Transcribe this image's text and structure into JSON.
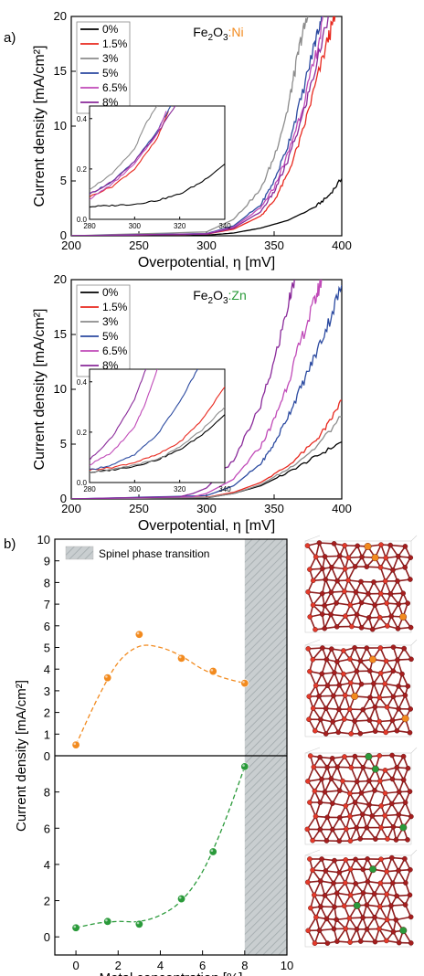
{
  "panel_labels": {
    "a": "a)",
    "b": "b)"
  },
  "chart_data": [
    {
      "id": "ni",
      "type": "line",
      "title_main": "Fe",
      "title_sub": "2",
      "title_mid": "O",
      "title_sub2": "3",
      "title_dopant": ":Ni",
      "dopant_color": "#f28a1e",
      "xlabel": "Overpotential, η [mV]",
      "ylabel": "Current density [mA/cm²]",
      "xlim": [
        200,
        400
      ],
      "ylim": [
        0,
        20
      ],
      "xticks": [
        "200",
        "250",
        "300",
        "350",
        "400"
      ],
      "yticks": [
        "0",
        "5",
        "10",
        "15",
        "20"
      ],
      "legend": "top-left",
      "series": [
        {
          "name": "0%",
          "color": "#000000",
          "x": [
            200,
            280,
            300,
            320,
            340,
            360,
            380,
            390,
            400
          ],
          "y": [
            0,
            0,
            0.05,
            0.25,
            0.7,
            1.4,
            2.6,
            3.6,
            5.2
          ]
        },
        {
          "name": "1.5%",
          "color": "#e8281e",
          "x": [
            200,
            300,
            320,
            340,
            350,
            360,
            370,
            380,
            390,
            395
          ],
          "y": [
            0,
            0.15,
            0.6,
            1.8,
            3.2,
            5.6,
            9.0,
            13.5,
            18.0,
            20
          ]
        },
        {
          "name": "3%",
          "color": "#8c8c8c",
          "x": [
            200,
            300,
            320,
            340,
            350,
            360,
            365,
            370,
            375
          ],
          "y": [
            0,
            0.35,
            1.5,
            4.2,
            7.2,
            11.5,
            14.8,
            18.0,
            20
          ]
        },
        {
          "name": "5%",
          "color": "#2b4aa0",
          "x": [
            200,
            300,
            320,
            340,
            350,
            360,
            370,
            380,
            385
          ],
          "y": [
            0,
            0.2,
            0.9,
            2.8,
            5.0,
            8.2,
            12.5,
            17.5,
            20
          ]
        },
        {
          "name": "6.5%",
          "color": "#c04ab8",
          "x": [
            200,
            300,
            320,
            340,
            350,
            360,
            370,
            380,
            387
          ],
          "y": [
            0,
            0.18,
            0.8,
            2.5,
            4.4,
            7.4,
            11.3,
            16.0,
            20
          ]
        },
        {
          "name": "8%",
          "color": "#8a2a9a",
          "x": [
            200,
            300,
            320,
            340,
            350,
            360,
            370,
            380,
            390
          ],
          "y": [
            0,
            0.15,
            0.7,
            2.2,
            4.0,
            6.8,
            10.5,
            15.0,
            20
          ]
        }
      ],
      "inset": {
        "xlim": [
          280,
          340
        ],
        "ylim": [
          0,
          0.45
        ],
        "xticks": [
          "280",
          "300",
          "320",
          "340"
        ],
        "yticks": [
          "0.0",
          "0.2",
          "0.4"
        ],
        "series": [
          {
            "name": "0%",
            "x": [
              280,
              290,
              300,
              310,
              320,
              330,
              340
            ],
            "y": [
              0.05,
              0.055,
              0.06,
              0.075,
              0.1,
              0.15,
              0.22
            ]
          },
          {
            "name": "1.5%",
            "x": [
              280,
              290,
              300,
              310,
              315
            ],
            "y": [
              0.09,
              0.13,
              0.2,
              0.32,
              0.43
            ]
          },
          {
            "name": "3%",
            "x": [
              280,
              290,
              300,
              305,
              310
            ],
            "y": [
              0.12,
              0.18,
              0.28,
              0.38,
              0.45
            ]
          },
          {
            "name": "5%",
            "x": [
              280,
              290,
              300,
              310,
              316
            ],
            "y": [
              0.1,
              0.15,
              0.23,
              0.35,
              0.45
            ]
          },
          {
            "name": "6.5%",
            "x": [
              280,
              290,
              300,
              310,
              314
            ],
            "y": [
              0.08,
              0.14,
              0.22,
              0.34,
              0.43
            ]
          },
          {
            "name": "8%",
            "x": [
              280,
              290,
              300,
              310,
              318
            ],
            "y": [
              0.1,
              0.15,
              0.23,
              0.34,
              0.45
            ]
          }
        ]
      }
    },
    {
      "id": "zn",
      "type": "line",
      "title_main": "Fe",
      "title_sub": "2",
      "title_mid": "O",
      "title_sub2": "3",
      "title_dopant": ":Zn",
      "dopant_color": "#2a9a3a",
      "xlabel": "Overpotential, η [mV]",
      "ylabel": "Current density [mA/cm²]",
      "xlim": [
        200,
        400
      ],
      "ylim": [
        0,
        20
      ],
      "xticks": [
        "200",
        "250",
        "300",
        "350",
        "400"
      ],
      "yticks": [
        "0",
        "5",
        "10",
        "15",
        "20"
      ],
      "legend": "top-left",
      "series": [
        {
          "name": "0%",
          "color": "#000000",
          "x": [
            200,
            300,
            320,
            340,
            360,
            380,
            400
          ],
          "y": [
            0,
            0.1,
            0.5,
            1.2,
            2.4,
            3.8,
            5.2
          ]
        },
        {
          "name": "1.5%",
          "color": "#e8281e",
          "x": [
            200,
            300,
            320,
            340,
            360,
            380,
            390,
            400
          ],
          "y": [
            0,
            0.15,
            0.6,
            1.5,
            3.0,
            5.2,
            6.8,
            9.0
          ]
        },
        {
          "name": "3%",
          "color": "#8c8c8c",
          "x": [
            200,
            300,
            320,
            340,
            360,
            380,
            400
          ],
          "y": [
            0,
            0.12,
            0.5,
            1.3,
            2.7,
            4.6,
            7.5
          ]
        },
        {
          "name": "5%",
          "color": "#2b4aa0",
          "x": [
            200,
            300,
            320,
            340,
            350,
            360,
            370,
            380,
            390,
            400
          ],
          "y": [
            0,
            0.3,
            1.2,
            3.2,
            5.0,
            7.5,
            10.2,
            13.0,
            16.0,
            19.5
          ]
        },
        {
          "name": "6.5%",
          "color": "#c04ab8",
          "x": [
            200,
            290,
            300,
            320,
            340,
            350,
            360,
            370,
            380,
            385
          ],
          "y": [
            0,
            0.2,
            0.5,
            1.8,
            4.8,
            7.2,
            10.5,
            14.5,
            18.0,
            20
          ]
        },
        {
          "name": "8%",
          "color": "#8a2a9a",
          "x": [
            200,
            280,
            290,
            300,
            320,
            340,
            350,
            360,
            365
          ],
          "y": [
            0,
            0.2,
            0.5,
            1.0,
            3.5,
            8.5,
            12.5,
            17.5,
            20
          ]
        }
      ],
      "inset": {
        "xlim": [
          280,
          340
        ],
        "ylim": [
          0,
          0.45
        ],
        "xticks": [
          "280",
          "300",
          "320",
          "340"
        ],
        "yticks": [
          "0.0",
          "0.2",
          "0.4"
        ],
        "series": [
          {
            "name": "0%",
            "x": [
              280,
              290,
              300,
              310,
              320,
              330,
              340
            ],
            "y": [
              0.04,
              0.05,
              0.065,
              0.09,
              0.13,
              0.19,
              0.27
            ]
          },
          {
            "name": "1.5%",
            "x": [
              280,
              290,
              300,
              310,
              320,
              330,
              340
            ],
            "y": [
              0.05,
              0.06,
              0.08,
              0.11,
              0.16,
              0.25,
              0.38
            ]
          },
          {
            "name": "3%",
            "x": [
              280,
              290,
              300,
              310,
              320,
              330,
              340
            ],
            "y": [
              0.04,
              0.05,
              0.07,
              0.09,
              0.14,
              0.21,
              0.3
            ]
          },
          {
            "name": "5%",
            "x": [
              280,
              290,
              300,
              310,
              320,
              328
            ],
            "y": [
              0.05,
              0.07,
              0.11,
              0.19,
              0.32,
              0.45
            ]
          },
          {
            "name": "6.5%",
            "x": [
              280,
              290,
              300,
              305,
              310
            ],
            "y": [
              0.07,
              0.12,
              0.22,
              0.32,
              0.45
            ]
          },
          {
            "name": "8%",
            "x": [
              280,
              290,
              300,
              305
            ],
            "y": [
              0.09,
              0.18,
              0.33,
              0.45
            ]
          }
        ]
      }
    },
    {
      "id": "b",
      "type": "scatter",
      "ylabel": "Current density [mA/cm²]",
      "xlabel": "Metal concentration [%]",
      "legend_label": "Spinel phase transition",
      "legend": "top",
      "xlim": [
        -1,
        10
      ],
      "xticks": [
        "0",
        "2",
        "4",
        "6",
        "8",
        "10"
      ],
      "shade_x": [
        8,
        10
      ],
      "top": {
        "ylim": [
          0,
          10
        ],
        "yticks": [
          "0",
          "1",
          "2",
          "3",
          "4",
          "5",
          "6",
          "7",
          "8",
          "9",
          "10"
        ],
        "color": "#f28a1e",
        "x": [
          0,
          1.5,
          3,
          5,
          6.5,
          8
        ],
        "y": [
          0.5,
          3.6,
          5.6,
          4.5,
          3.9,
          3.35
        ],
        "fit_x": [
          0,
          1,
          2,
          3,
          4,
          5,
          6,
          7,
          8
        ],
        "fit_y": [
          0.5,
          2.6,
          4.3,
          5.05,
          5.0,
          4.6,
          4.0,
          3.6,
          3.35
        ]
      },
      "bottom": {
        "ylim": [
          -1,
          10
        ],
        "yticks": [
          "0",
          "2",
          "4",
          "6",
          "8"
        ],
        "color": "#2a9a3a",
        "x": [
          0,
          1.5,
          3,
          5,
          6.5,
          8
        ],
        "y": [
          0.5,
          0.85,
          0.7,
          2.1,
          4.7,
          9.4
        ],
        "fit_x": [
          0,
          1,
          2,
          3,
          4,
          5,
          6,
          7,
          8
        ],
        "fit_y": [
          0.5,
          0.75,
          0.85,
          0.85,
          1.2,
          2.0,
          3.6,
          6.2,
          9.4
        ]
      }
    }
  ],
  "structures": [
    {
      "dopant": "ni",
      "color": "#f28a1e"
    },
    {
      "dopant": "ni",
      "color": "#f28a1e"
    },
    {
      "dopant": "zn",
      "color": "#2a9a3a"
    },
    {
      "dopant": "zn",
      "color": "#2a9a3a"
    }
  ]
}
